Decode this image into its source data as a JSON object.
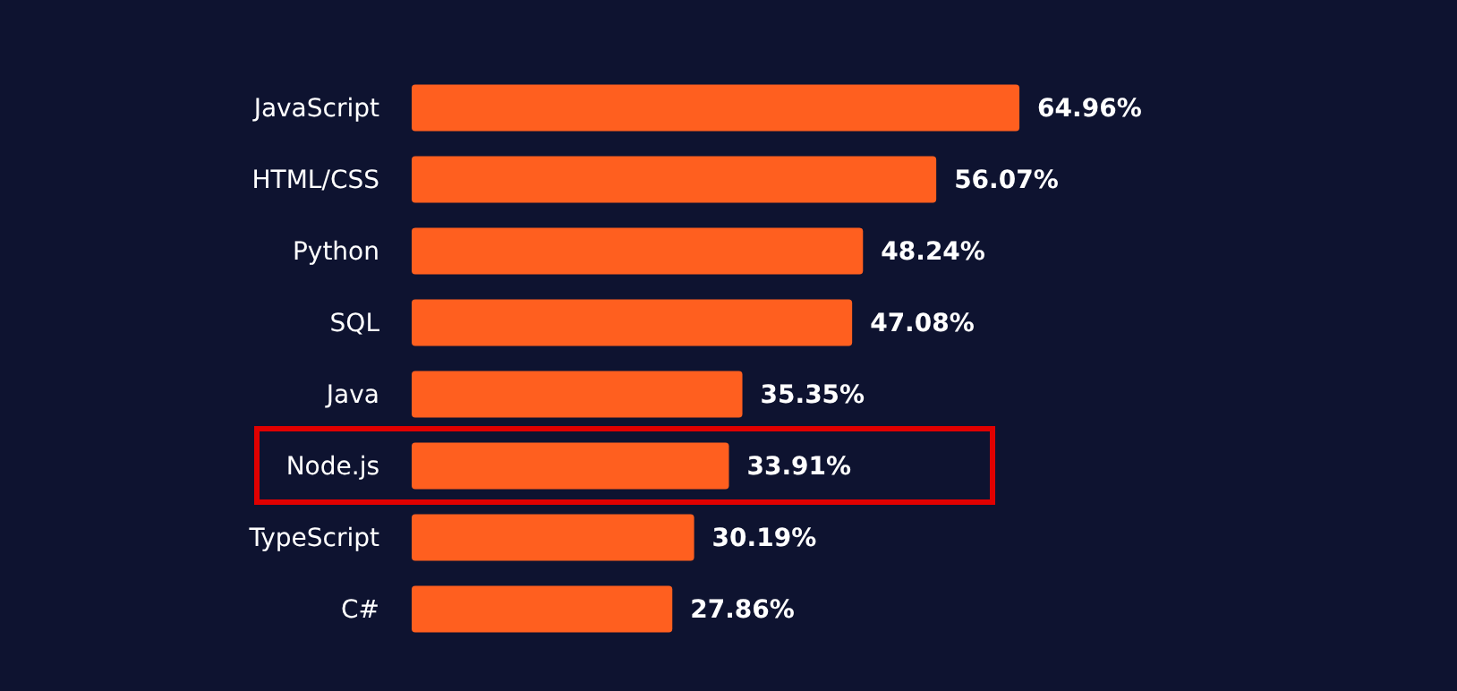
{
  "chart_data": {
    "type": "bar",
    "orientation": "horizontal",
    "categories": [
      "JavaScript",
      "HTML/CSS",
      "Python",
      "SQL",
      "Java",
      "Node.js",
      "TypeScript",
      "C#"
    ],
    "values": [
      64.96,
      56.07,
      48.24,
      47.08,
      35.35,
      33.91,
      30.19,
      27.86
    ],
    "value_labels": [
      "64.96%",
      "56.07%",
      "48.24%",
      "47.08%",
      "35.35%",
      "33.91%",
      "30.19%",
      "27.86%"
    ],
    "color": "#ff5f1f",
    "tick_labels": "y"
  }
}
